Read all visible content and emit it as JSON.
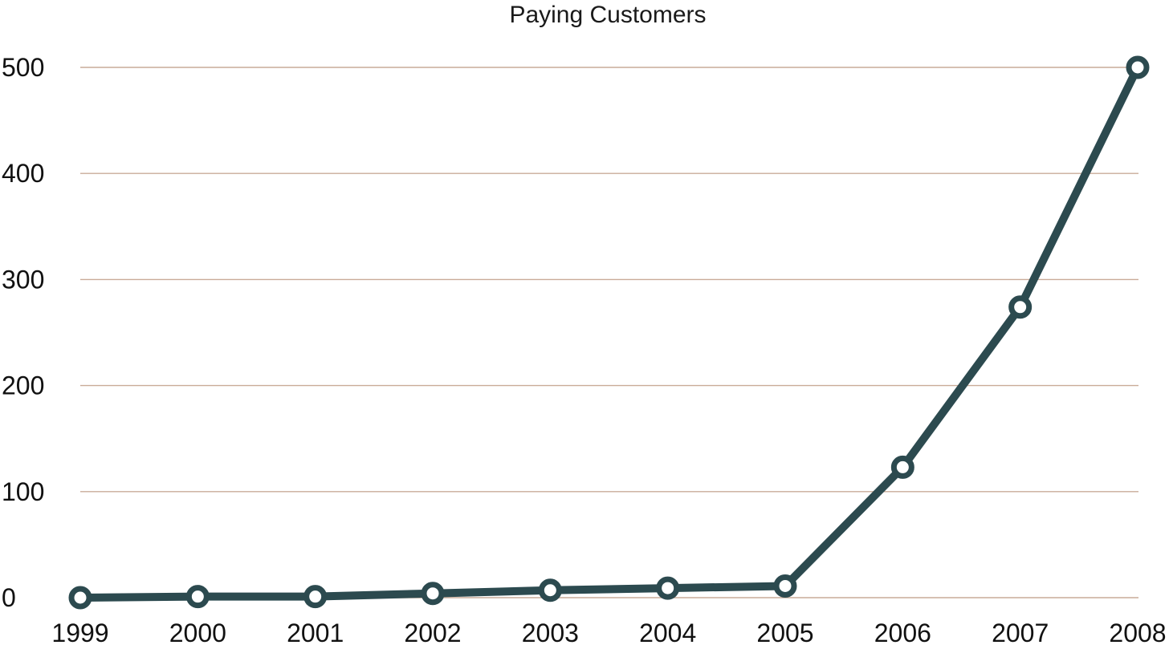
{
  "chart_data": {
    "type": "line",
    "title": "Paying Customers",
    "xlabel": "",
    "ylabel": "",
    "categories": [
      "1999",
      "2000",
      "2001",
      "2002",
      "2003",
      "2004",
      "2005",
      "2006",
      "2007",
      "2008"
    ],
    "series": [
      {
        "values": [
          0,
          1,
          1,
          4,
          7,
          9,
          11,
          123,
          274,
          500
        ]
      }
    ],
    "ylim": [
      0,
      500
    ],
    "yticks": [
      0,
      100,
      200,
      300,
      400,
      500
    ],
    "grid": true,
    "legend": "none",
    "colors": {
      "line": "#2c4a4f",
      "marker_fill": "#ffffff",
      "grid": "#c9ab98"
    }
  }
}
